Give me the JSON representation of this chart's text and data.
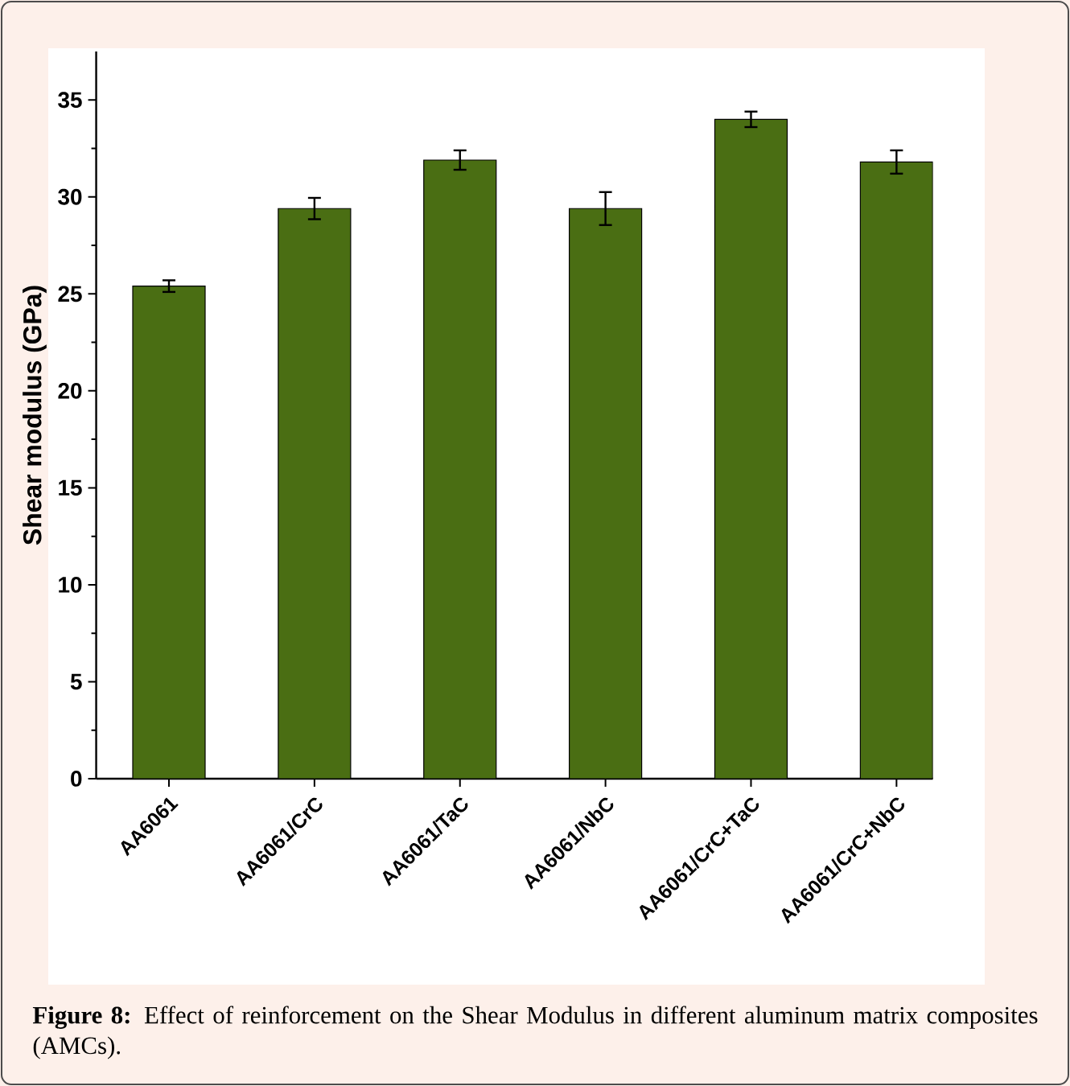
{
  "chart_data": {
    "type": "bar",
    "ylabel": "Shear modulus (GPa)",
    "categories": [
      "AA6061",
      "AA6061/CrC",
      "AA6061/TaC",
      "AA6061/NbC",
      "AA6061/CrC+TaC",
      "AA6061/CrC+NbC"
    ],
    "values": [
      25.4,
      29.4,
      31.9,
      29.4,
      34.0,
      31.8
    ],
    "errors": [
      0.3,
      0.55,
      0.5,
      0.85,
      0.4,
      0.6
    ],
    "color": "#4a6e13",
    "ylim": [
      0,
      37.5
    ],
    "yticks": [
      0,
      5,
      10,
      15,
      20,
      25,
      30,
      35
    ],
    "annotations": [
      "**Figure 8:** Effect of reinforcement on the Shear Modulus in different aluminum matrix composites (AMCs)."
    ]
  }
}
